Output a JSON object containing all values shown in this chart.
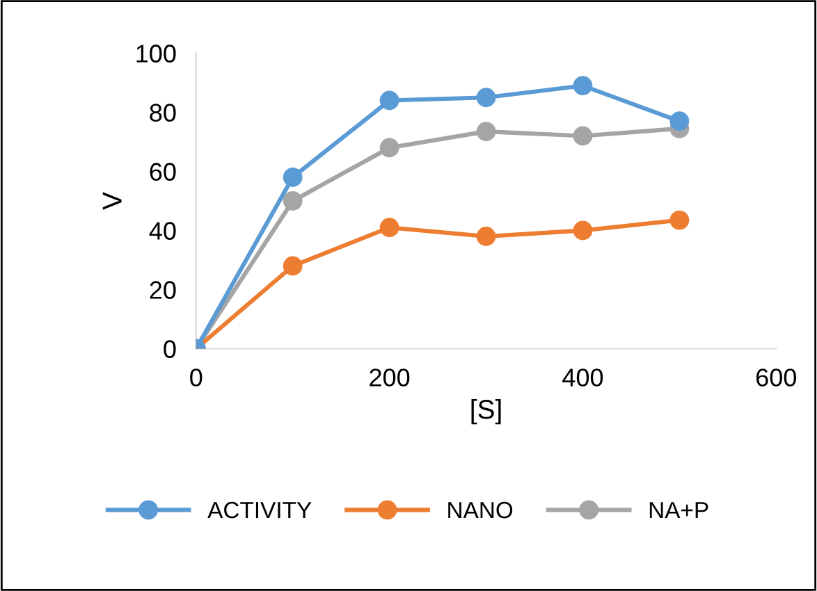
{
  "chart_data": {
    "type": "line",
    "xlabel": "[S]",
    "ylabel": "V",
    "x": [
      0,
      100,
      200,
      300,
      400,
      500
    ],
    "series": [
      {
        "name": "ACTIVITY",
        "color": "#5b9bd5",
        "values": [
          0,
          58,
          84,
          85,
          89,
          77
        ]
      },
      {
        "name": "NANO",
        "color": "#ed7d31",
        "values": [
          0,
          28,
          41,
          38,
          40,
          43.5
        ]
      },
      {
        "name": "NA+P",
        "color": "#a5a5a5",
        "values": [
          0,
          50,
          68,
          73.5,
          72,
          74.5
        ]
      }
    ],
    "xlim": [
      0,
      600
    ],
    "xticks": [
      0,
      200,
      400,
      600
    ],
    "ylim": [
      0,
      100
    ],
    "yticks": [
      0,
      20,
      40,
      60,
      80,
      100
    ],
    "grid": false,
    "legend": "bottom",
    "marker": "circle",
    "line_style": "solid"
  }
}
